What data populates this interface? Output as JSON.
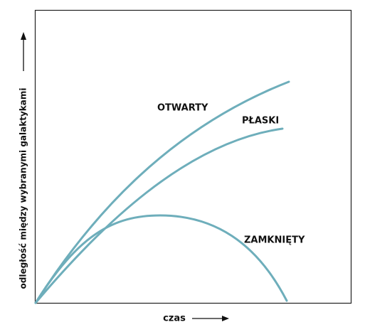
{
  "axes": {
    "y_label": "odległość między wybranymi galaktykami",
    "x_label": "czas"
  },
  "curves": [
    {
      "label": "OTWARTY"
    },
    {
      "label": "PŁASKI"
    },
    {
      "label": "ZAMKNIĘTY"
    }
  ]
}
